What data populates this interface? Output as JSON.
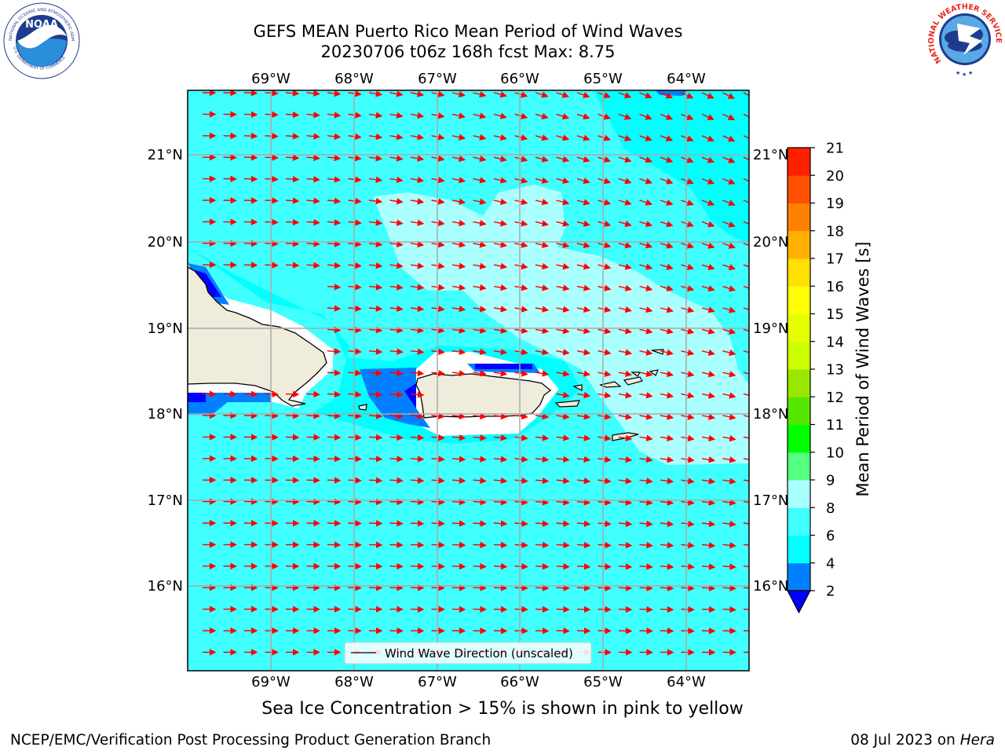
{
  "header": {
    "title_line1": "GEFS MEAN Puerto Rico Mean Period of Wind Waves",
    "title_line2": "20230706 t06z 168h fcst   Max: 8.75"
  },
  "map": {
    "lon_labels": [
      "69°W",
      "68°W",
      "67°W",
      "66°W",
      "65°W",
      "64°W"
    ],
    "lat_labels": [
      "21°N",
      "20°N",
      "19°N",
      "18°N",
      "17°N",
      "16°N"
    ],
    "legend_label": "Wind Wave Direction (unscaled)",
    "colors": {
      "ocean_6_8": "#40ffff",
      "ocean_8_9": "#aaffff",
      "ocean_4_6": "#00ffff",
      "band_2_4": "#0080ff",
      "band_lt2": "#0000ff",
      "land": "#efecdc",
      "arrow": "#ff0000"
    }
  },
  "colorbar": {
    "label": "Mean Period of Wind Waves [s]",
    "ticks": [
      "2",
      "4",
      "6",
      "8",
      "9",
      "10",
      "11",
      "12",
      "13",
      "14",
      "15",
      "16",
      "17",
      "18",
      "19",
      "20",
      "21"
    ],
    "colors": [
      "#0080ff",
      "#00ffff",
      "#40ffff",
      "#aaffff",
      "#55ff80",
      "#00ff00",
      "#55e600",
      "#99e600",
      "#ccff00",
      "#e6ff00",
      "#ffff00",
      "#ffe000",
      "#ffb000",
      "#ff8000",
      "#ff5000",
      "#ff2000"
    ],
    "under_color": "#0000ff"
  },
  "footer": {
    "sea_ice_note": "Sea Ice Concentration > 15% is shown in pink to yellow",
    "branch": "NCEP/EMC/Verification Post Processing Product Generation Branch",
    "date_prefix": "08 Jul 2023 on",
    "machine": "Hera"
  },
  "logos": {
    "noaa_text": "NOAA",
    "noaa_ring": "NATIONAL OCEANIC AND ATMOSPHERIC ADMINISTRATION",
    "noaa_ring_bottom": "U.S. DEPARTMENT OF COMMERCE",
    "nws_ring": "NATIONAL WEATHER SERVICE"
  }
}
